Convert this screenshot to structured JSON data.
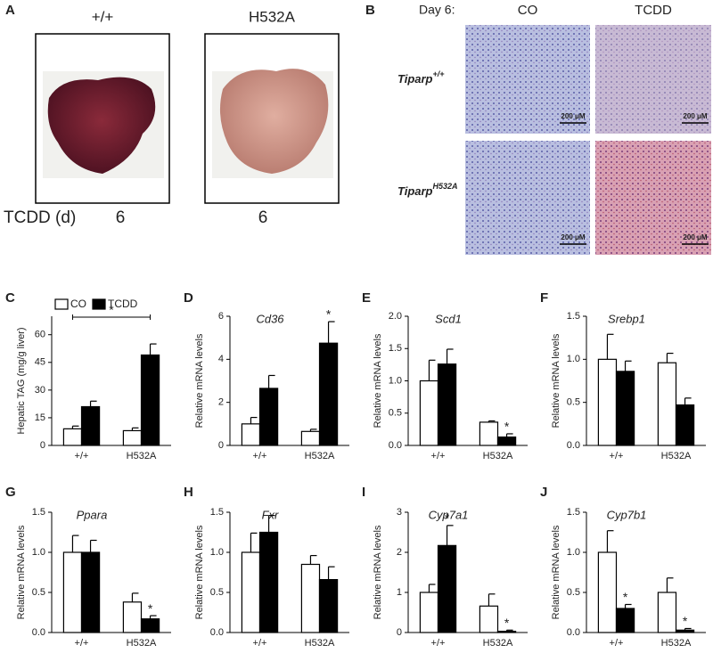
{
  "photos": {
    "A": {
      "label": "A",
      "columns": [
        "+/+",
        "H532A"
      ],
      "row_label": "TCDD (d)",
      "days": [
        "6",
        "6"
      ]
    },
    "B": {
      "label": "B",
      "header": "Day 6:",
      "columns": [
        "CO",
        "TCDD"
      ],
      "rows": [
        {
          "name": "Tiparp",
          "superscript": "+/+"
        },
        {
          "name": "Tiparp",
          "superscript": "H532A"
        }
      ],
      "scale_bar": "200 μM"
    }
  },
  "chart_data": [
    {
      "type": "bar",
      "label": "C",
      "ylabel": "Hepatic TAG  (mg/g liver)",
      "categories": [
        "+/+",
        "H532A"
      ],
      "series": [
        {
          "name": "CO",
          "color": "#ffffff",
          "values": [
            9,
            8
          ],
          "errors": [
            1.5,
            1.5
          ]
        },
        {
          "name": "TCDD",
          "color": "#000000",
          "values": [
            21,
            49
          ],
          "errors": [
            3,
            6
          ]
        }
      ],
      "legend": true,
      "bracket_label": "*",
      "ylim": [
        0,
        70
      ],
      "yticks": [
        0,
        15,
        30,
        45,
        60
      ]
    },
    {
      "type": "bar",
      "label": "D",
      "title": "Cd36",
      "ylabel": "Relative mRNA levels",
      "categories": [
        "+/+",
        "H532A"
      ],
      "series": [
        {
          "color": "#ffffff",
          "values": [
            1.0,
            0.65
          ],
          "errors": [
            0.3,
            0.1
          ],
          "significance": [
            null,
            null
          ]
        },
        {
          "color": "#000000",
          "values": [
            2.65,
            4.75
          ],
          "errors": [
            0.6,
            1.0
          ],
          "significance": [
            null,
            "*"
          ]
        }
      ],
      "ylim": [
        0,
        6
      ],
      "yticks": [
        0,
        2,
        4,
        6
      ]
    },
    {
      "type": "bar",
      "label": "E",
      "title": "Scd1",
      "ylabel": "Relative mRNA levels",
      "categories": [
        "+/+",
        "H532A"
      ],
      "series": [
        {
          "color": "#ffffff",
          "values": [
            1.0,
            0.36
          ],
          "errors": [
            0.32,
            0.02
          ],
          "significance": [
            null,
            null
          ]
        },
        {
          "color": "#000000",
          "values": [
            1.26,
            0.13
          ],
          "errors": [
            0.23,
            0.05
          ],
          "significance": [
            null,
            "*"
          ]
        }
      ],
      "ylim": [
        0,
        2
      ],
      "yticks": [
        {
          "value": 0,
          "label": "0.0"
        },
        {
          "value": 0.5,
          "label": "0.5"
        },
        {
          "value": 1,
          "label": "1.0"
        },
        {
          "value": 1.5,
          "label": "1.5"
        },
        {
          "value": 2,
          "label": "2.0"
        }
      ]
    },
    {
      "type": "bar",
      "label": "F",
      "title": "Srebp1",
      "ylabel": "Relative mRNA levels",
      "categories": [
        "+/+",
        "H532A"
      ],
      "series": [
        {
          "color": "#ffffff",
          "values": [
            1.0,
            0.96
          ],
          "errors": [
            0.29,
            0.11
          ],
          "significance": [
            null,
            null
          ]
        },
        {
          "color": "#000000",
          "values": [
            0.86,
            0.47
          ],
          "errors": [
            0.12,
            0.08
          ],
          "significance": [
            null,
            null
          ]
        }
      ],
      "ylim": [
        0,
        1.5
      ],
      "yticks": [
        {
          "value": 0,
          "label": "0.0"
        },
        {
          "value": 0.5,
          "label": "0.5"
        },
        {
          "value": 1,
          "label": "1.0"
        },
        {
          "value": 1.5,
          "label": "1.5"
        }
      ]
    },
    {
      "type": "bar",
      "label": "G",
      "title": "Ppara",
      "ylabel": "Relative mRNA levels",
      "categories": [
        "+/+",
        "H532A"
      ],
      "series": [
        {
          "color": "#ffffff",
          "values": [
            1.0,
            0.38
          ],
          "errors": [
            0.21,
            0.11
          ],
          "significance": [
            null,
            null
          ]
        },
        {
          "color": "#000000",
          "values": [
            1.0,
            0.17
          ],
          "errors": [
            0.15,
            0.04
          ],
          "significance": [
            null,
            "*"
          ]
        }
      ],
      "ylim": [
        0,
        1.5
      ],
      "yticks": [
        {
          "value": 0,
          "label": "0.0"
        },
        {
          "value": 0.5,
          "label": "0.5"
        },
        {
          "value": 1,
          "label": "1.0"
        },
        {
          "value": 1.5,
          "label": "1.5"
        }
      ]
    },
    {
      "type": "bar",
      "label": "H",
      "title": "Fxr",
      "ylabel": "Relative mRNA levels",
      "categories": [
        "+/+",
        "H532A"
      ],
      "series": [
        {
          "color": "#ffffff",
          "values": [
            1.0,
            0.85
          ],
          "errors": [
            0.24,
            0.11
          ],
          "significance": [
            null,
            null
          ]
        },
        {
          "color": "#000000",
          "values": [
            1.25,
            0.66
          ],
          "errors": [
            0.21,
            0.16
          ],
          "significance": [
            null,
            null
          ]
        }
      ],
      "ylim": [
        0,
        1.5
      ],
      "yticks": [
        {
          "value": 0,
          "label": "0.0"
        },
        {
          "value": 0.5,
          "label": "0.5"
        },
        {
          "value": 1,
          "label": "1.0"
        },
        {
          "value": 1.5,
          "label": "1.5"
        }
      ]
    },
    {
      "type": "bar",
      "label": "I",
      "title": "Cyp7a1",
      "ylabel": "Relative mRNA levels",
      "categories": [
        "+/+",
        "H532A"
      ],
      "series": [
        {
          "color": "#ffffff",
          "values": [
            1.0,
            0.66
          ],
          "errors": [
            0.2,
            0.3
          ],
          "significance": [
            null,
            null
          ]
        },
        {
          "color": "#000000",
          "values": [
            2.17,
            0.03
          ],
          "errors": [
            0.5,
            0.03
          ],
          "significance": [
            "*",
            "*"
          ]
        }
      ],
      "ylim": [
        0,
        3
      ],
      "yticks": [
        0,
        1,
        2,
        3
      ]
    },
    {
      "type": "bar",
      "label": "J",
      "title": "Cyp7b1",
      "ylabel": "Relative mRNA levels",
      "categories": [
        "+/+",
        "H532A"
      ],
      "series": [
        {
          "color": "#ffffff",
          "values": [
            1.0,
            0.5
          ],
          "errors": [
            0.27,
            0.18
          ],
          "significance": [
            null,
            null
          ]
        },
        {
          "color": "#000000",
          "values": [
            0.3,
            0.03
          ],
          "errors": [
            0.05,
            0.02
          ],
          "significance": [
            "*",
            "*"
          ]
        }
      ],
      "ylim": [
        0,
        1.5
      ],
      "yticks": [
        {
          "value": 0,
          "label": "0.0"
        },
        {
          "value": 0.5,
          "label": "0.5"
        },
        {
          "value": 1,
          "label": "1.0"
        },
        {
          "value": 1.5,
          "label": "1.5"
        }
      ]
    }
  ]
}
